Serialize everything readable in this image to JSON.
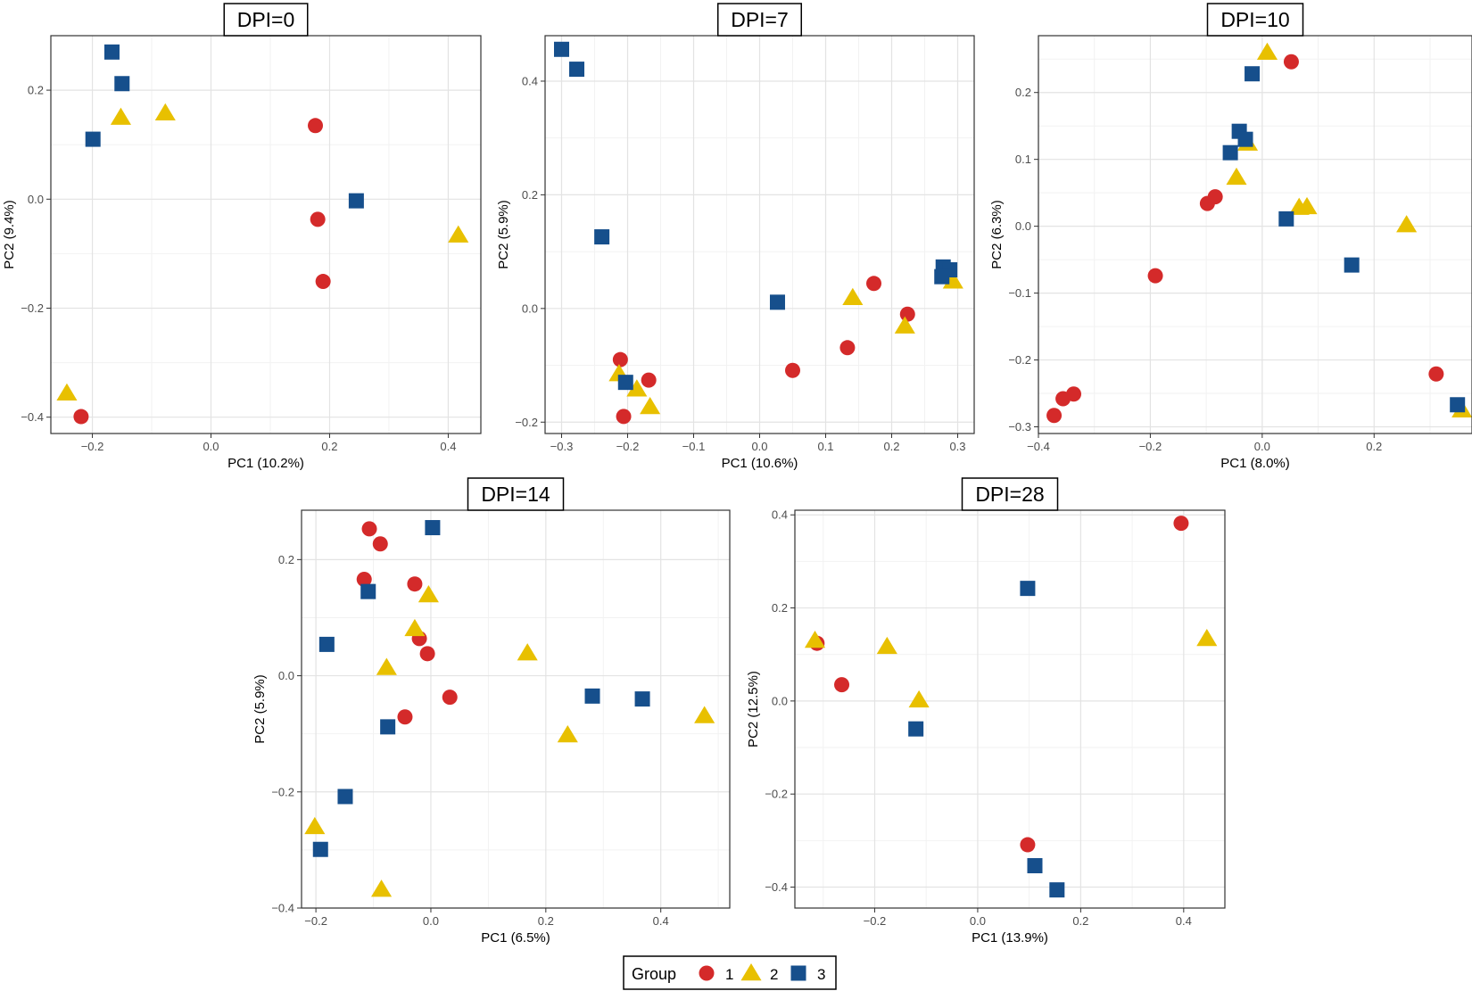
{
  "colors": {
    "group1": "#d42a2a",
    "group2": "#e8c000",
    "group3": "#164f8c"
  },
  "legend": {
    "title": "Group",
    "items": [
      {
        "label": "1",
        "shape": "circle",
        "color": "#d42a2a"
      },
      {
        "label": "2",
        "shape": "triangle",
        "color": "#e8c000"
      },
      {
        "label": "3",
        "shape": "square",
        "color": "#164f8c"
      }
    ]
  },
  "chart_data": [
    {
      "type": "scatter",
      "title": "DPI=0",
      "xlabel": "PC1 (10.2%)",
      "ylabel": "PC2 (9.4%)",
      "xlim": [
        -0.27,
        0.455
      ],
      "ylim": [
        -0.43,
        0.3
      ],
      "xticks": [
        -0.2,
        0.0,
        0.2,
        0.4
      ],
      "yticks": [
        -0.4,
        -0.2,
        0.0,
        0.2
      ],
      "grid": true,
      "series": [
        {
          "name": "1",
          "points": [
            [
              0.176,
              0.135
            ],
            [
              0.18,
              -0.037
            ],
            [
              0.189,
              -0.151
            ],
            [
              -0.219,
              -0.399
            ]
          ]
        },
        {
          "name": "2",
          "points": [
            [
              -0.152,
              0.15
            ],
            [
              -0.077,
              0.158
            ],
            [
              0.417,
              -0.066
            ],
            [
              -0.243,
              -0.356
            ]
          ]
        },
        {
          "name": "3",
          "points": [
            [
              -0.167,
              0.27
            ],
            [
              -0.15,
              0.212
            ],
            [
              -0.199,
              0.11
            ],
            [
              0.245,
              -0.003
            ]
          ]
        }
      ]
    },
    {
      "type": "scatter",
      "title": "DPI=7",
      "xlabel": "PC1 (10.6%)",
      "ylabel": "PC2 (5.9%)",
      "xlim": [
        -0.325,
        0.325
      ],
      "ylim": [
        -0.22,
        0.48
      ],
      "xticks": [
        -0.3,
        -0.2,
        -0.1,
        0.0,
        0.1,
        0.2,
        0.3
      ],
      "yticks": [
        -0.2,
        0.0,
        0.2,
        0.4
      ],
      "grid": true,
      "series": [
        {
          "name": "1",
          "points": [
            [
              -0.211,
              -0.09
            ],
            [
              -0.168,
              -0.126
            ],
            [
              -0.206,
              -0.19
            ],
            [
              0.05,
              -0.109
            ],
            [
              0.133,
              -0.069
            ],
            [
              0.173,
              0.044
            ],
            [
              0.224,
              -0.01
            ]
          ]
        },
        {
          "name": "2",
          "points": [
            [
              -0.213,
              -0.115
            ],
            [
              -0.186,
              -0.142
            ],
            [
              -0.166,
              -0.173
            ],
            [
              0.141,
              0.019
            ],
            [
              0.22,
              -0.031
            ],
            [
              0.293,
              0.048
            ]
          ]
        },
        {
          "name": "3",
          "points": [
            [
              -0.3,
              0.456
            ],
            [
              -0.277,
              0.421
            ],
            [
              -0.239,
              0.126
            ],
            [
              -0.203,
              -0.13
            ],
            [
              0.027,
              0.011
            ],
            [
              0.278,
              0.073
            ],
            [
              0.288,
              0.068
            ],
            [
              0.276,
              0.056
            ]
          ]
        }
      ]
    },
    {
      "type": "scatter",
      "title": "DPI=10",
      "xlabel": "PC1 (8.0%)",
      "ylabel": "PC2 (6.3%)",
      "xlim": [
        -0.4,
        0.375
      ],
      "ylim": [
        -0.31,
        0.285
      ],
      "xticks": [
        -0.4,
        -0.2,
        0.0,
        0.2
      ],
      "yticks": [
        -0.3,
        -0.2,
        -0.1,
        0.0,
        0.1,
        0.2
      ],
      "grid": true,
      "series": [
        {
          "name": "1",
          "points": [
            [
              0.052,
              0.246
            ],
            [
              -0.098,
              0.034
            ],
            [
              -0.084,
              0.044
            ],
            [
              -0.191,
              -0.074
            ],
            [
              0.311,
              -0.221
            ],
            [
              -0.372,
              -0.283
            ],
            [
              -0.356,
              -0.258
            ],
            [
              -0.337,
              -0.251
            ]
          ]
        },
        {
          "name": "2",
          "points": [
            [
              0.009,
              0.26
            ],
            [
              -0.026,
              0.124
            ],
            [
              -0.046,
              0.073
            ],
            [
              0.066,
              0.028
            ],
            [
              0.08,
              0.029
            ],
            [
              0.258,
              0.002
            ],
            [
              0.357,
              -0.275
            ]
          ]
        },
        {
          "name": "3",
          "points": [
            [
              -0.018,
              0.228
            ],
            [
              -0.041,
              0.142
            ],
            [
              -0.03,
              0.13
            ],
            [
              -0.057,
              0.11
            ],
            [
              0.043,
              0.011
            ],
            [
              0.16,
              -0.058
            ],
            [
              0.349,
              -0.267
            ]
          ]
        }
      ]
    },
    {
      "type": "scatter",
      "title": "DPI=14",
      "xlabel": "PC1 (6.5%)",
      "ylabel": "PC2 (5.9%)",
      "xlim": [
        -0.225,
        0.52
      ],
      "ylim": [
        -0.4,
        0.285
      ],
      "xticks": [
        -0.2,
        0.0,
        0.2,
        0.4
      ],
      "yticks": [
        -0.4,
        -0.2,
        0.0,
        0.2
      ],
      "grid": true,
      "series": [
        {
          "name": "1",
          "points": [
            [
              -0.107,
              0.253
            ],
            [
              -0.088,
              0.227
            ],
            [
              -0.116,
              0.166
            ],
            [
              -0.028,
              0.158
            ],
            [
              -0.02,
              0.064
            ],
            [
              -0.006,
              0.038
            ],
            [
              0.033,
              -0.037
            ],
            [
              -0.045,
              -0.071
            ]
          ]
        },
        {
          "name": "2",
          "points": [
            [
              -0.004,
              0.139
            ],
            [
              -0.028,
              0.081
            ],
            [
              -0.077,
              0.014
            ],
            [
              0.168,
              0.039
            ],
            [
              0.238,
              -0.102
            ],
            [
              0.476,
              -0.069
            ],
            [
              -0.202,
              -0.26
            ],
            [
              -0.086,
              -0.368
            ]
          ]
        },
        {
          "name": "3",
          "points": [
            [
              0.003,
              0.255
            ],
            [
              -0.109,
              0.145
            ],
            [
              -0.181,
              0.054
            ],
            [
              0.281,
              -0.035
            ],
            [
              0.368,
              -0.04
            ],
            [
              -0.075,
              -0.088
            ],
            [
              -0.149,
              -0.208
            ],
            [
              -0.192,
              -0.299
            ]
          ]
        }
      ]
    },
    {
      "type": "scatter",
      "title": "DPI=28",
      "xlabel": "PC1 (13.9%)",
      "ylabel": "PC2 (12.5%)",
      "xlim": [
        -0.355,
        0.48
      ],
      "ylim": [
        -0.445,
        0.41
      ],
      "xticks": [
        -0.2,
        0.0,
        0.2,
        0.4
      ],
      "yticks": [
        -0.4,
        -0.2,
        0.0,
        0.2,
        0.4
      ],
      "grid": true,
      "series": [
        {
          "name": "1",
          "points": [
            [
              0.395,
              0.382
            ],
            [
              -0.312,
              0.124
            ],
            [
              -0.264,
              0.035
            ],
            [
              0.097,
              -0.309
            ]
          ]
        },
        {
          "name": "2",
          "points": [
            [
              -0.316,
              0.13
            ],
            [
              -0.176,
              0.117
            ],
            [
              -0.114,
              0.002
            ],
            [
              0.445,
              0.134
            ]
          ]
        },
        {
          "name": "3",
          "points": [
            [
              0.097,
              0.242
            ],
            [
              -0.12,
              -0.06
            ],
            [
              0.111,
              -0.354
            ],
            [
              0.154,
              -0.406
            ]
          ]
        }
      ]
    }
  ]
}
